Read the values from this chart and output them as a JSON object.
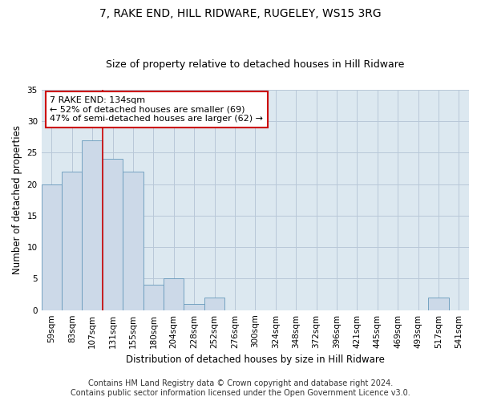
{
  "title1": "7, RAKE END, HILL RIDWARE, RUGELEY, WS15 3RG",
  "title2": "Size of property relative to detached houses in Hill Ridware",
  "xlabel": "Distribution of detached houses by size in Hill Ridware",
  "ylabel": "Number of detached properties",
  "categories": [
    "59sqm",
    "83sqm",
    "107sqm",
    "131sqm",
    "155sqm",
    "180sqm",
    "204sqm",
    "228sqm",
    "252sqm",
    "276sqm",
    "300sqm",
    "324sqm",
    "348sqm",
    "372sqm",
    "396sqm",
    "421sqm",
    "445sqm",
    "469sqm",
    "493sqm",
    "517sqm",
    "541sqm"
  ],
  "values": [
    20,
    22,
    27,
    24,
    22,
    4,
    5,
    1,
    2,
    0,
    0,
    0,
    0,
    0,
    0,
    0,
    0,
    0,
    0,
    2,
    0
  ],
  "bar_color": "#ccd9e8",
  "bar_edge_color": "#6699bb",
  "vline_x": 2.5,
  "vline_color": "#cc0000",
  "annotation_text": "7 RAKE END: 134sqm\n← 52% of detached houses are smaller (69)\n47% of semi-detached houses are larger (62) →",
  "annotation_box_color": "#ffffff",
  "annotation_box_edge": "#cc0000",
  "ylim": [
    0,
    35
  ],
  "yticks": [
    0,
    5,
    10,
    15,
    20,
    25,
    30,
    35
  ],
  "grid_color": "#b8c8d8",
  "bg_color": "#dce8f0",
  "footer1": "Contains HM Land Registry data © Crown copyright and database right 2024.",
  "footer2": "Contains public sector information licensed under the Open Government Licence v3.0.",
  "title1_fontsize": 10,
  "title2_fontsize": 9,
  "xlabel_fontsize": 8.5,
  "ylabel_fontsize": 8.5,
  "tick_fontsize": 7.5,
  "annotation_fontsize": 8,
  "footer_fontsize": 7
}
